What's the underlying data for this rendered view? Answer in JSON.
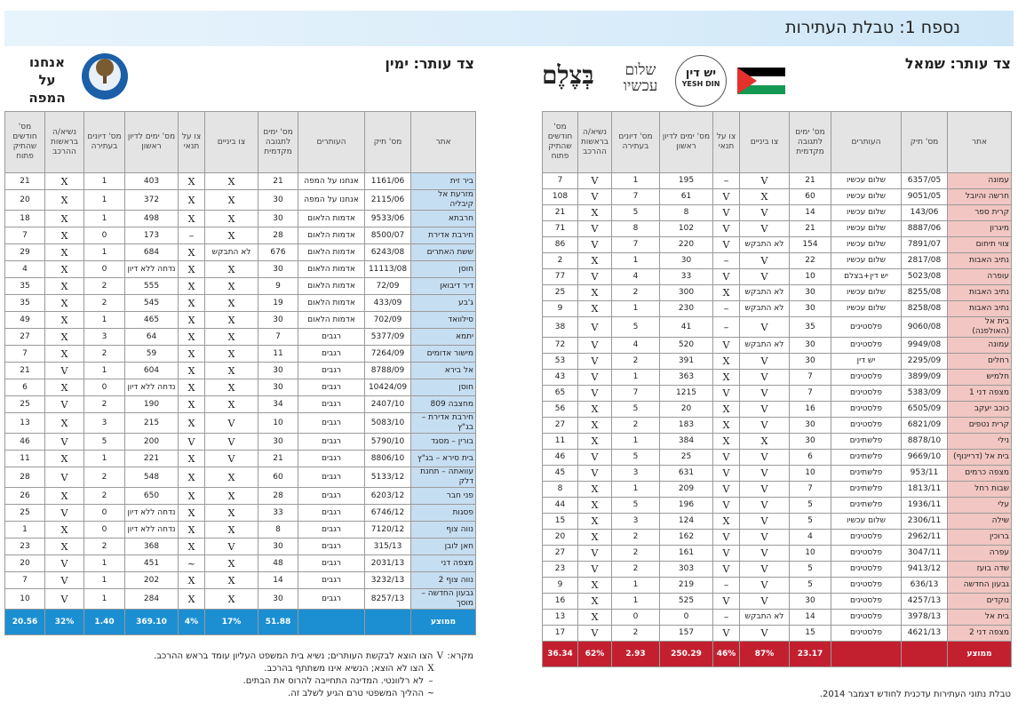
{
  "header": {
    "title": "נספח 1: טבלת העתירות"
  },
  "right_table": {
    "heading": "צד עותר: שמאל",
    "logos": [
      "בְּצֶלֶם",
      "שלום עכשיו",
      "יש דין",
      "YESH DIN"
    ],
    "columns": [
      "אתר",
      "מס' תיק",
      "העותרים",
      "מס' ימים לתגובה מקדמית",
      "צו ביניים",
      "צו על תנאי",
      "מס' ימים לדיון ראשון",
      "מס' דיונים בעתירה",
      "נשיא/ה בראשות ההרכב",
      "מס' חודשים שהתיק פתוח"
    ],
    "rows": [
      [
        "עמונה",
        "6357/05",
        "שלום עכשיו",
        "21",
        "V",
        "–",
        "195",
        "1",
        "V",
        "7"
      ],
      [
        "חרשה והיובל",
        "9051/05",
        "שלום עכשיו",
        "60",
        "X",
        "V",
        "61",
        "7",
        "V",
        "108"
      ],
      [
        "קרית ספר",
        "143/06",
        "שלום עכשיו",
        "14",
        "V",
        "V",
        "8",
        "5",
        "X",
        "21"
      ],
      [
        "מיגרון",
        "8887/06",
        "שלום עכשיו",
        "21",
        "V",
        "V",
        "102",
        "8",
        "V",
        "71"
      ],
      [
        "צווי תיחום",
        "7891/07",
        "שלום עכשיו",
        "154",
        "לא התבקש",
        "V",
        "220",
        "7",
        "V",
        "86"
      ],
      [
        "נתיב האבות",
        "2817/08",
        "שלום עכשיו",
        "22",
        "V",
        "–",
        "30",
        "1",
        "X",
        "2"
      ],
      [
        "עופרה",
        "5023/08",
        "יש דין+בצלם",
        "10",
        "V",
        "V",
        "33",
        "4",
        "V",
        "77"
      ],
      [
        "נתיב האבות",
        "8255/08",
        "שלום עכשיו",
        "30",
        "לא התבקש",
        "X",
        "300",
        "2",
        "X",
        "25"
      ],
      [
        "נתיב האבות",
        "8258/08",
        "שלום עכשיו",
        "30",
        "לא התבקש",
        "–",
        "230",
        "1",
        "X",
        "9"
      ],
      [
        "בית אל (האולפנה)",
        "9060/08",
        "פלסטינים",
        "35",
        "V",
        "–",
        "41",
        "5",
        "V",
        "38"
      ],
      [
        "עמונה",
        "9949/08",
        "פלסטינים",
        "30",
        "לא התבקש",
        "V",
        "520",
        "4",
        "V",
        "72"
      ],
      [
        "רחלים",
        "2295/09",
        "יש דין",
        "30",
        "V",
        "X",
        "391",
        "2",
        "V",
        "53"
      ],
      [
        "חלמיש",
        "3899/09",
        "פלסטינים",
        "7",
        "V",
        "X",
        "363",
        "1",
        "V",
        "43"
      ],
      [
        "מצפה דני 1",
        "5383/09",
        "פלסטינים",
        "7",
        "V",
        "V",
        "1215",
        "7",
        "V",
        "65"
      ],
      [
        "כוכב יעקב",
        "6505/09",
        "פלסטינים",
        "16",
        "V",
        "X",
        "20",
        "5",
        "X",
        "56"
      ],
      [
        "קרית נטפים",
        "6821/09",
        "פלסטינים",
        "30",
        "V",
        "X",
        "183",
        "2",
        "X",
        "27"
      ],
      [
        "נילי",
        "8878/10",
        "פלשתינים",
        "30",
        "X",
        "X",
        "384",
        "1",
        "X",
        "11"
      ],
      [
        "בית אל (דריינוף)",
        "9669/10",
        "פלשתינים",
        "6",
        "V",
        "V",
        "25",
        "5",
        "V",
        "46"
      ],
      [
        "מצפה כרמים",
        "953/11",
        "פלשתינים",
        "10",
        "V",
        "V",
        "631",
        "3",
        "V",
        "45"
      ],
      [
        "שבות רחל",
        "1813/11",
        "פלשתינים",
        "7",
        "V",
        "V",
        "209",
        "1",
        "X",
        "8"
      ],
      [
        "עלי",
        "1936/11",
        "פלשתינים",
        "5",
        "V",
        "V",
        "196",
        "5",
        "X",
        "44"
      ],
      [
        "שילה",
        "2306/11",
        "שלום עכשיו",
        "5",
        "V",
        "X",
        "124",
        "3",
        "X",
        "15"
      ],
      [
        "ברוכין",
        "2962/11",
        "פלסטינים",
        "4",
        "V",
        "V",
        "162",
        "2",
        "X",
        "20"
      ],
      [
        "עפרה",
        "3047/11",
        "פלסטינים",
        "10",
        "V",
        "V",
        "161",
        "2",
        "V",
        "27"
      ],
      [
        "שדה בועז",
        "9413/12",
        "פלסטינים",
        "5",
        "V",
        "V",
        "303",
        "2",
        "V",
        "23"
      ],
      [
        "גבעון החדשה",
        "636/13",
        "פלסטינים",
        "5",
        "V",
        "–",
        "219",
        "1",
        "X",
        "9"
      ],
      [
        "נוקדים",
        "4257/13",
        "פלסטינים",
        "30",
        "V",
        "V",
        "525",
        "1",
        "X",
        "16"
      ],
      [
        "בית אל",
        "3978/13",
        "פלסטינים",
        "14",
        "לא התבקש",
        "–",
        "0",
        "0",
        "X",
        "13"
      ],
      [
        "מצפה דני 2",
        "4621/13",
        "פלסטינים",
        "15",
        "V",
        "V",
        "157",
        "2",
        "V",
        "17"
      ]
    ],
    "average": {
      "label": "ממוצע",
      "values": [
        "23.17",
        "87%",
        "46%",
        "250.29",
        "2.93",
        "62%",
        "36.34"
      ]
    },
    "note": "טבלת נתוני העתירות עדכנית לחודש דצמבר 2014."
  },
  "left_table": {
    "heading": "צד עותר: ימין",
    "logos": [
      "אנחנו על המפה"
    ],
    "columns": [
      "אתר",
      "מס' תיק",
      "העותרים",
      "מס' ימים לתגובה מקדמית",
      "צו ביניים",
      "צו על תנאי",
      "מס' ימים לדיון ראשון",
      "מס' דיונים בעתירה",
      "נשיא/ה בראשות ההרכב",
      "מס' חודשים שהתיק פתוח"
    ],
    "rows": [
      [
        "ביר זית",
        "1161/06",
        "אנחנו על המפה",
        "21",
        "X",
        "X",
        "403",
        "1",
        "X",
        "21"
      ],
      [
        "מזרעת אל קיבליה",
        "2115/06",
        "אנחנו על המפה",
        "30",
        "X",
        "X",
        "372",
        "1",
        "X",
        "20"
      ],
      [
        "חרבתא",
        "9533/06",
        "אדמות הלאום",
        "30",
        "X",
        "X",
        "498",
        "1",
        "X",
        "18"
      ],
      [
        "חירבת אדירת",
        "8500/07",
        "אדמות הלאום",
        "28",
        "X",
        "–",
        "173",
        "0",
        "X",
        "7"
      ],
      [
        "ששת האתרים",
        "6243/08",
        "אדמות הלאום",
        "676",
        "לא התבקש",
        "X",
        "684",
        "1",
        "X",
        "29"
      ],
      [
        "חוסן",
        "11113/08",
        "אדמות הלאום",
        "30",
        "X",
        "X",
        "נדחה ללא דיון",
        "0",
        "X",
        "4"
      ],
      [
        "דיר דיבואן",
        "72/09",
        "אדמות הלאום",
        "9",
        "X",
        "X",
        "555",
        "2",
        "X",
        "35"
      ],
      [
        "ג'בע",
        "433/09",
        "אדמות הלאום",
        "19",
        "X",
        "X",
        "545",
        "2",
        "X",
        "35"
      ],
      [
        "סילוואד",
        "702/09",
        "אדמות הלאום",
        "30",
        "X",
        "X",
        "465",
        "1",
        "X",
        "49"
      ],
      [
        "יתמא",
        "5377/09",
        "רגבים",
        "7",
        "X",
        "X",
        "64",
        "3",
        "X",
        "27"
      ],
      [
        "מישור אדומים",
        "7264/09",
        "רגבים",
        "11",
        "X",
        "X",
        "59",
        "2",
        "X",
        "7"
      ],
      [
        "אל בירא",
        "8788/09",
        "רגבים",
        "30",
        "X",
        "X",
        "604",
        "1",
        "V",
        "21"
      ],
      [
        "חוסן",
        "10424/09",
        "רגבים",
        "30",
        "X",
        "X",
        "נדחה ללא דיון",
        "0",
        "X",
        "6"
      ],
      [
        "מחצבה 809",
        "2407/10",
        "רגבים",
        "34",
        "X",
        "X",
        "190",
        "2",
        "V",
        "25"
      ],
      [
        "חירבת אדירת – בג\"ץ",
        "5083/10",
        "רגבים",
        "10",
        "V",
        "X",
        "215",
        "3",
        "X",
        "13"
      ],
      [
        "בורין – מסגד",
        "5790/10",
        "רגבים",
        "30",
        "V",
        "V",
        "200",
        "5",
        "V",
        "46"
      ],
      [
        "בית סירא – בג\"ץ",
        "8806/10",
        "רגבים",
        "21",
        "V",
        "X",
        "221",
        "1",
        "X",
        "11"
      ],
      [
        "עוואתה – תחנת דלק",
        "5133/12",
        "רגבים",
        "60",
        "X",
        "X",
        "548",
        "2",
        "V",
        "28"
      ],
      [
        "פני חבר",
        "6203/12",
        "רגבים",
        "28",
        "X",
        "X",
        "650",
        "2",
        "X",
        "26"
      ],
      [
        "פסגות",
        "6746/12",
        "רגבים",
        "33",
        "X",
        "X",
        "נדחה ללא דיון",
        "0",
        "V",
        "25"
      ],
      [
        "נווה צוף",
        "7120/12",
        "רגבים",
        "8",
        "X",
        "X",
        "נדחה ללא דיון",
        "0",
        "X",
        "1"
      ],
      [
        "חאן לובן",
        "315/13",
        "רגבים",
        "30",
        "V",
        "X",
        "368",
        "2",
        "X",
        "23"
      ],
      [
        "מצפה דני",
        "2031/13",
        "רגבים",
        "48",
        "X",
        "~",
        "451",
        "1",
        "V",
        "20"
      ],
      [
        "נווה צוף 2",
        "3232/13",
        "רגבים",
        "14",
        "X",
        "X",
        "202",
        "1",
        "V",
        "7"
      ],
      [
        "גבעון החדשה – מוסך",
        "8257/13",
        "רגבים",
        "30",
        "X",
        "X",
        "284",
        "1",
        "V",
        "10"
      ]
    ],
    "average": {
      "label": "ממוצע",
      "values": [
        "51.88",
        "17%",
        "4%",
        "369.10",
        "1.40",
        "32%",
        "20.56"
      ]
    }
  },
  "legend": {
    "title": "מקרא:",
    "items": [
      {
        "symbol": "V",
        "text": "הצו הוצא לבקשת העותרים; נשיא בית המשפט העליון עומד בראש ההרכב."
      },
      {
        "symbol": "X",
        "text": "הצו לא הוצא; הנשיא אינו משתתף בהרכב."
      },
      {
        "symbol": "–",
        "text": "לא רלוונטי. המדינה התחייבה להרוס את הבתים."
      },
      {
        "symbol": "~",
        "text": "ההליך המשפטי טרם הגיע לשלב זה."
      }
    ]
  }
}
